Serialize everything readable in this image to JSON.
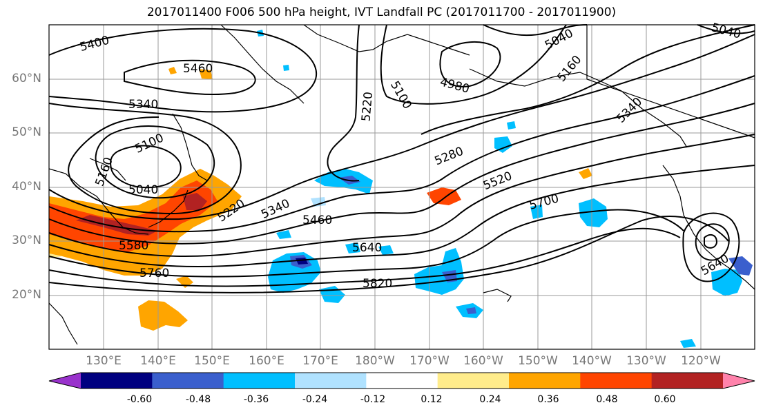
{
  "title": "2017011400 F006 500 hPa height, IVT Landfall PC (2017011700 - 2017011900)",
  "lat_labels": [
    "60°N",
    "50°N",
    "40°N",
    "30°N",
    "20°N"
  ],
  "lon_labels": [
    "130°E",
    "140°E",
    "150°E",
    "160°E",
    "170°E",
    "180°W",
    "170°W",
    "160°W",
    "150°W",
    "140°W",
    "130°W",
    "120°W"
  ],
  "contour_labels": [
    "5400",
    "5460",
    "5340",
    "5100",
    "5160",
    "5040",
    "5220",
    "5340",
    "5460",
    "5580",
    "5760",
    "5640",
    "5820",
    "5220",
    "5100",
    "4980",
    "5040",
    "5160",
    "5280",
    "5520",
    "5700",
    "5640",
    "5040",
    "5340"
  ],
  "colorbar": {
    "ticks": [
      "-0.60",
      "-0.48",
      "-0.36",
      "-0.24",
      "-0.12",
      "0.12",
      "0.24",
      "0.36",
      "0.48",
      "0.60"
    ],
    "colors": [
      "#9932CC",
      "#000080",
      "#3A5FCD",
      "#00BFFF",
      "#B0E2FF",
      "#FFFFFF",
      "#FFEC8B",
      "#FFA500",
      "#FF4500",
      "#B22222",
      "#FF82AB"
    ]
  }
}
